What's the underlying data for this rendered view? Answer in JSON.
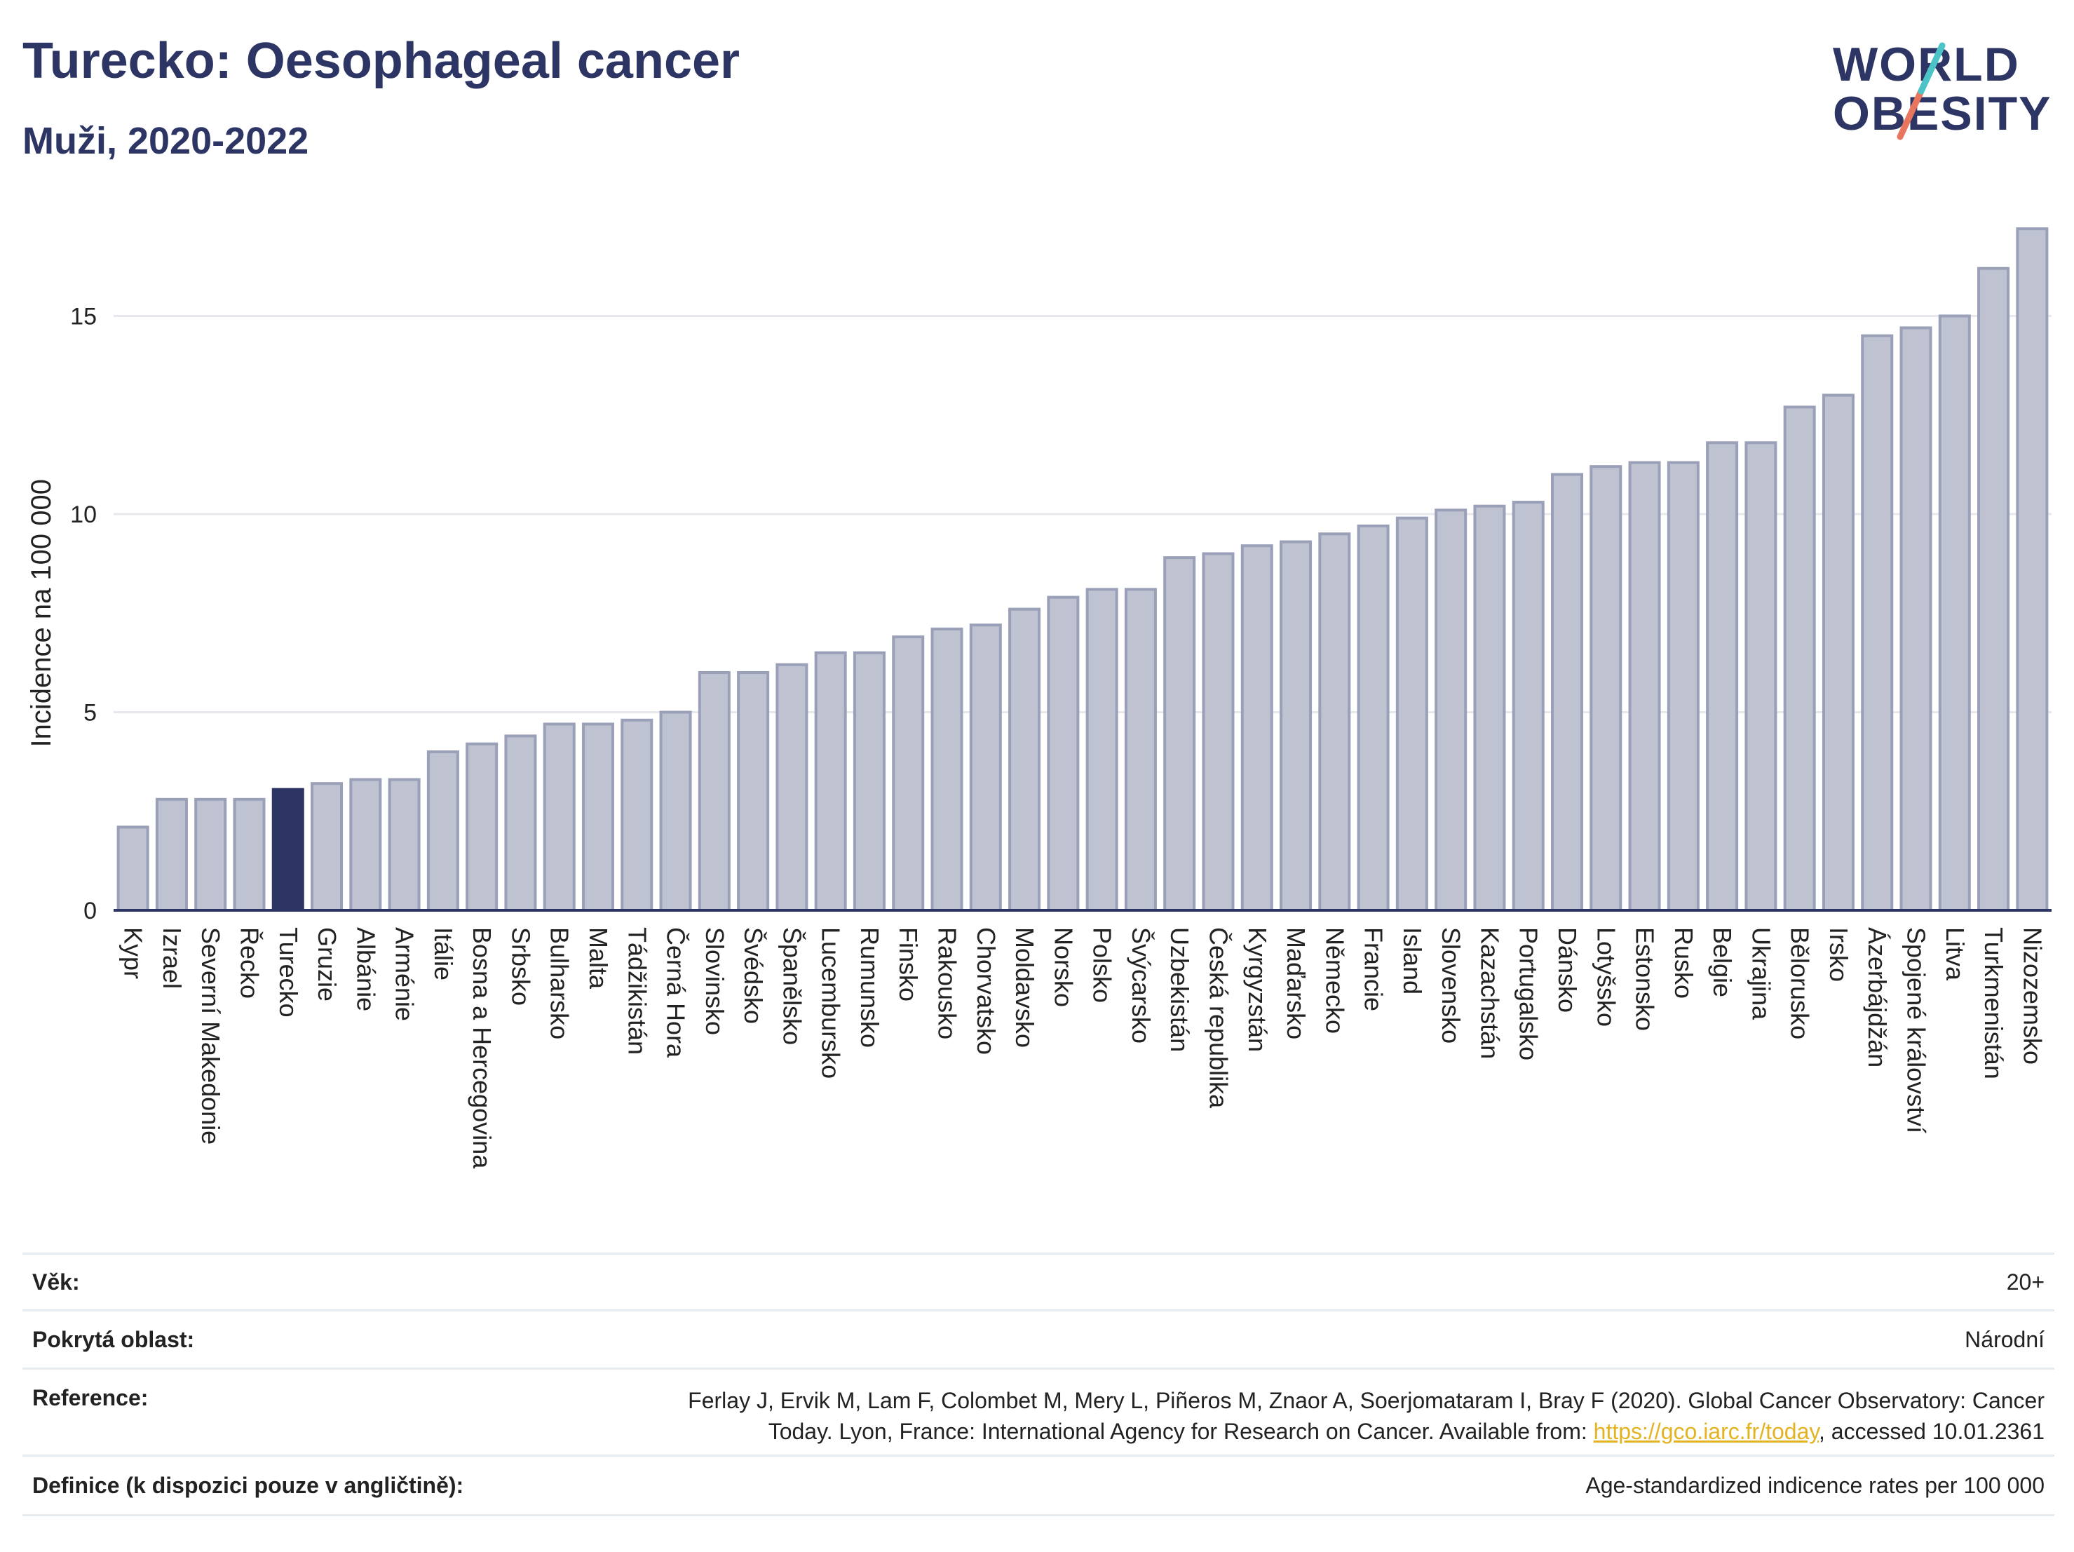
{
  "header": {
    "title": "Turecko: Oesophageal cancer",
    "subtitle": "Muži, 2020-2022"
  },
  "logo": {
    "line1": "WORLD",
    "line2": "OBESITY",
    "slash_colors": [
      "#4cc3c7",
      "#e8765f"
    ]
  },
  "colors": {
    "bar": "#bfc3d1",
    "bar_stroke": "#9aa0b8",
    "highlight": "#2c3563",
    "grid": "#e6e8ee",
    "axis": "#2c3563",
    "link": "#e3b322"
  },
  "chart_data": {
    "type": "bar",
    "ylabel": "Incidence na 100 000",
    "ylim": [
      0,
      17.5
    ],
    "yticks": [
      0,
      5,
      10,
      15
    ],
    "grid": true,
    "highlight": "Turecko",
    "categories": [
      "Kypr",
      "Izrael",
      "Severní Makedonie",
      "Řecko",
      "Turecko",
      "Gruzie",
      "Albánie",
      "Arménie",
      "Itálie",
      "Bosna a Hercegovina",
      "Srbsko",
      "Bulharsko",
      "Malta",
      "Tádžikistán",
      "Černá Hora",
      "Slovinsko",
      "Švédsko",
      "Španělsko",
      "Lucembursko",
      "Rumunsko",
      "Finsko",
      "Rakousko",
      "Chorvatsko",
      "Moldavsko",
      "Norsko",
      "Polsko",
      "Švýcarsko",
      "Uzbekistán",
      "Česká republika",
      "Kyrgyzstán",
      "Maďarsko",
      "Německo",
      "Francie",
      "Island",
      "Slovensko",
      "Kazachstán",
      "Portugalsko",
      "Dánsko",
      "Lotyšsko",
      "Estonsko",
      "Rusko",
      "Belgie",
      "Ukrajina",
      "Bělorusko",
      "Irsko",
      "Ázerbájdžán",
      "Spojené království",
      "Litva",
      "Turkmenistán",
      "Nizozemsko"
    ],
    "values": [
      2.1,
      2.8,
      2.8,
      2.8,
      3.05,
      3.2,
      3.3,
      3.3,
      4.0,
      4.2,
      4.4,
      4.7,
      4.7,
      4.8,
      5.0,
      6.0,
      6.0,
      6.2,
      6.5,
      6.5,
      6.9,
      7.1,
      7.2,
      7.6,
      7.9,
      8.1,
      8.1,
      8.9,
      9.0,
      9.2,
      9.3,
      9.5,
      9.7,
      9.9,
      10.1,
      10.2,
      10.3,
      11.0,
      11.2,
      11.3,
      11.3,
      11.8,
      11.8,
      12.7,
      13.0,
      14.5,
      14.7,
      15.0,
      16.2,
      17.2
    ]
  },
  "info": {
    "age_label": "Věk:",
    "age_value": "20+",
    "area_label": "Pokrytá oblast:",
    "area_value": "Národní",
    "ref_label": "Reference:",
    "ref_text1": "Ferlay J, Ervik M, Lam F, Colombet M, Mery L, Piñeros M, Znaor A, Soerjomataram I, Bray F (2020). Global Cancer Observatory: Cancer",
    "ref_text2": "Today. Lyon, France: International Agency for Research on Cancer. Available from:",
    "ref_link": "https://gco.iarc.fr/today",
    "ref_text3": ", accessed 10.01.2361",
    "def_label": "Definice (k dispozici pouze v angličtině):",
    "def_value": "Age-standardized indicence rates per 100 000"
  }
}
